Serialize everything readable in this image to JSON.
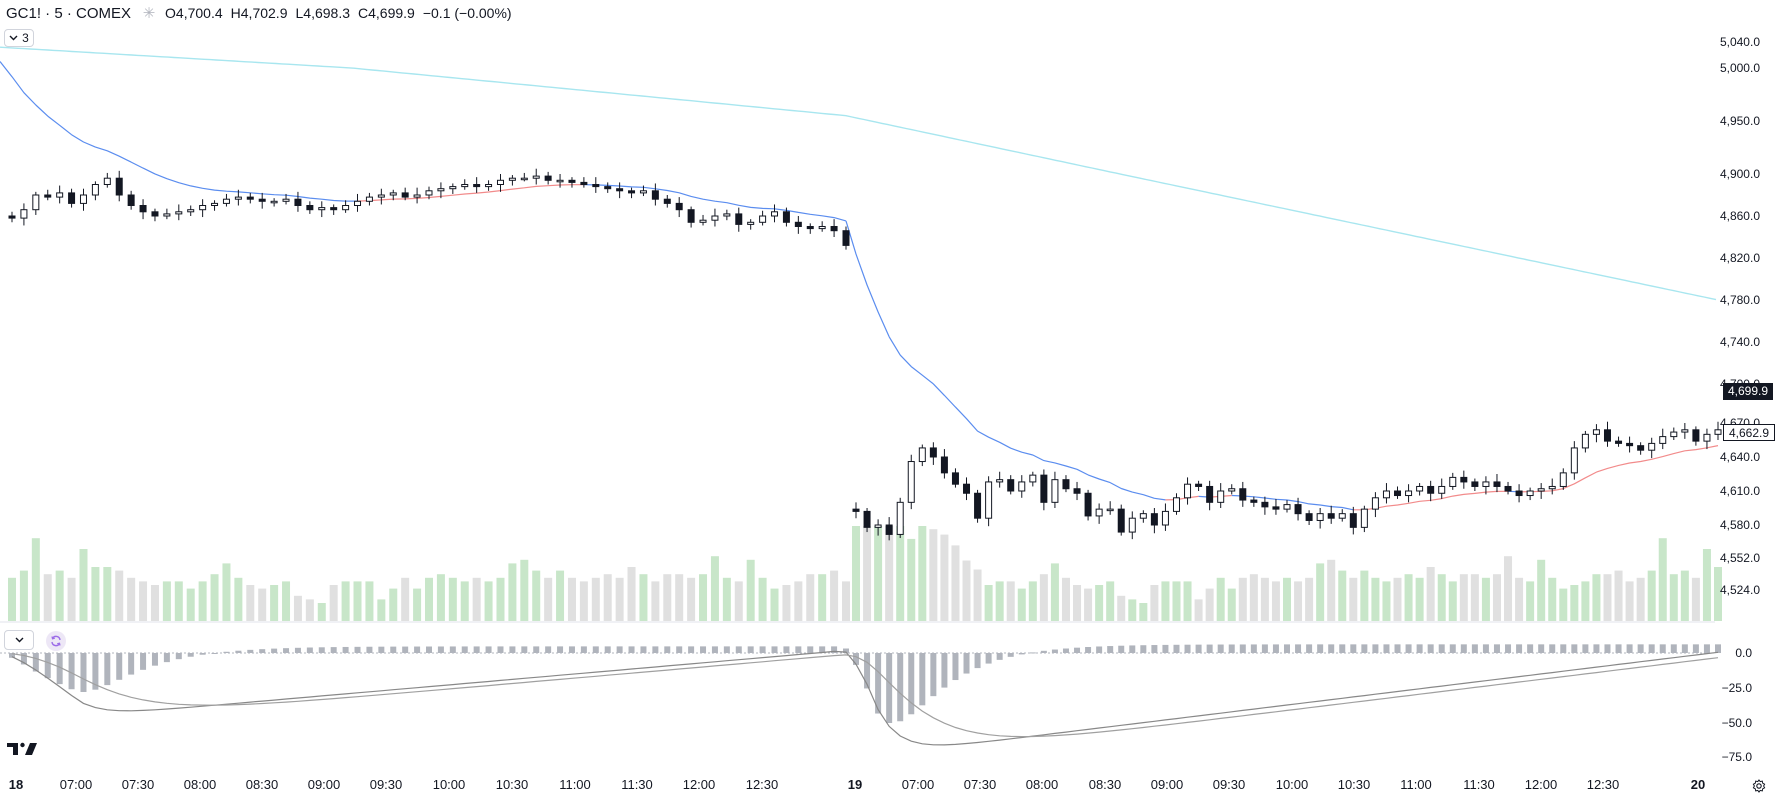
{
  "header": {
    "symbol": "GC1! · 5 · COMEX",
    "open_label": "O",
    "open": "4,700.4",
    "high_label": "H",
    "high": "4,702.9",
    "low_label": "L",
    "low": "4,698.3",
    "close_label": "C",
    "close": "4,699.9",
    "change": "−0.1 (−0.00%)"
  },
  "indicator_toggle": {
    "count": "3"
  },
  "price_tags": {
    "last": "4,699.9",
    "ma": "4,662.9"
  },
  "colors": {
    "up_fill": "#ffffff",
    "candle_stroke": "#131722",
    "down_fill": "#131722",
    "ma_fast_blue": "#5b8def",
    "ma_fast_red": "#f28b8b",
    "ma_slow": "#a8e6ef",
    "vol_up": "#c8e6c9",
    "vol_down": "#e0e0e0",
    "macd": "#888888",
    "hist": "#b0b4bc"
  },
  "chart_data": [
    {
      "type": "candlestick",
      "title": "GC1! · 5 · COMEX",
      "y_ticks": [
        "5,040.0",
        "5,000.0",
        "4,950.0",
        "4,900.0",
        "4,860.0",
        "4,820.0",
        "4,780.0",
        "4,740.0",
        "4,700.0",
        "4,670.0",
        "4,640.0",
        "4,610.0",
        "4,580.0",
        "4,552.0",
        "4,524.0"
      ],
      "x_ticks": [
        "18",
        "07:00",
        "07:30",
        "08:00",
        "08:30",
        "09:00",
        "09:30",
        "10:00",
        "10:30",
        "11:00",
        "11:30",
        "12:00",
        "12:30",
        "19",
        "07:00",
        "07:30",
        "08:00",
        "08:30",
        "09:00",
        "09:30",
        "10:00",
        "10:30",
        "11:00",
        "11:30",
        "12:00",
        "12:30",
        "20"
      ],
      "ylim": [
        4524,
        5050
      ],
      "session1": {
        "x_range": [
          "06:35",
          "13:10"
        ],
        "closes": [
          4858,
          4866,
          4880,
          4878,
          4882,
          4872,
          4880,
          4890,
          4896,
          4880,
          4870,
          4864,
          4860,
          4862,
          4864,
          4866,
          4870,
          4872,
          4876,
          4878,
          4876,
          4874,
          4874,
          4876,
          4870,
          4866,
          4868,
          4866,
          4870,
          4874,
          4878,
          4880,
          4882,
          4878,
          4880,
          4884,
          4886,
          4888,
          4890,
          4888,
          4890,
          4894,
          4896,
          4896,
          4898,
          4894,
          4894,
          4892,
          4890,
          4888,
          4886,
          4884,
          4882,
          4884,
          4876,
          4872,
          4866,
          4854,
          4856,
          4860,
          4862,
          4852,
          4854,
          4860,
          4864,
          4854,
          4850,
          4848,
          4850,
          4846,
          4832
        ]
      },
      "session2": {
        "x_range": [
          "06:35",
          "13:15"
        ],
        "closes": [
          4592,
          4578,
          4580,
          4572,
          4600,
          4636,
          4648,
          4640,
          4626,
          4616,
          4608,
          4586,
          4618,
          4620,
          4610,
          4618,
          4624,
          4600,
          4620,
          4612,
          4608,
          4588,
          4594,
          4594,
          4574,
          4586,
          4590,
          4580,
          4592,
          4604,
          4616,
          4614,
          4600,
          4610,
          4612,
          4602,
          4600,
          4596,
          4594,
          4598,
          4590,
          4584,
          4590,
          4586,
          4590,
          4578,
          4594,
          4604,
          4610,
          4606,
          4610,
          4614,
          4608,
          4614,
          4622,
          4618,
          4614,
          4618,
          4614,
          4610,
          4606,
          4610,
          4612,
          4614,
          4626,
          4648,
          4660,
          4664,
          4654,
          4652,
          4650,
          4646,
          4652,
          4658,
          4662,
          4664,
          4654,
          4660,
          4664
        ]
      },
      "ma_fast_start": 5010,
      "ma_fast_end": 4650,
      "ma_slow_start": 5032,
      "ma_slow_end": 4780
    },
    {
      "type": "bar",
      "title": "",
      "series": [
        {
          "values": [
            12,
            14,
            23,
            13,
            14,
            12,
            20,
            15,
            15,
            14,
            12,
            11,
            10,
            11,
            11,
            9,
            11,
            13,
            16,
            12,
            10,
            9,
            10,
            11,
            7,
            6,
            5,
            10,
            11,
            11,
            11,
            6,
            9,
            12,
            9,
            12,
            13,
            12,
            11,
            12,
            11,
            12,
            16,
            17,
            14,
            12,
            14,
            12,
            11,
            12,
            13,
            12,
            15,
            13,
            11,
            13,
            13,
            12,
            13,
            18,
            12,
            11,
            17,
            12,
            9,
            10,
            11,
            13,
            13,
            14,
            11
          ]
        }
      ]
    },
    {
      "type": "line",
      "title": "",
      "y_ticks": [
        "0.0",
        "−25.0",
        "−50.0",
        "−75.0"
      ],
      "ylim": [
        -80,
        5
      ]
    }
  ]
}
